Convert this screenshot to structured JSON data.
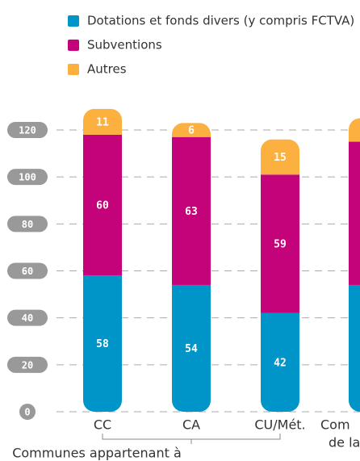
{
  "chart_data": {
    "type": "stacked_bar",
    "categories": [
      "CC",
      "CA",
      "CU/Mét.",
      [
        "Com",
        "de la"
      ]
    ],
    "group_label": "Communes appartenant à",
    "series": [
      {
        "name": "Dotations et fonds divers (y compris FCTVA)",
        "color": "#0095c8",
        "values": [
          58,
          54,
          42,
          54
        ]
      },
      {
        "name": "Subventions",
        "color": "#c4037a",
        "values": [
          60,
          63,
          59,
          61
        ]
      },
      {
        "name": "Autres",
        "color": "#fbb040",
        "values": [
          11,
          6,
          15,
          10
        ]
      }
    ],
    "ylim": [
      0,
      120
    ],
    "yticks": [
      0,
      20,
      40,
      60,
      80,
      100,
      120
    ],
    "grid": true
  }
}
